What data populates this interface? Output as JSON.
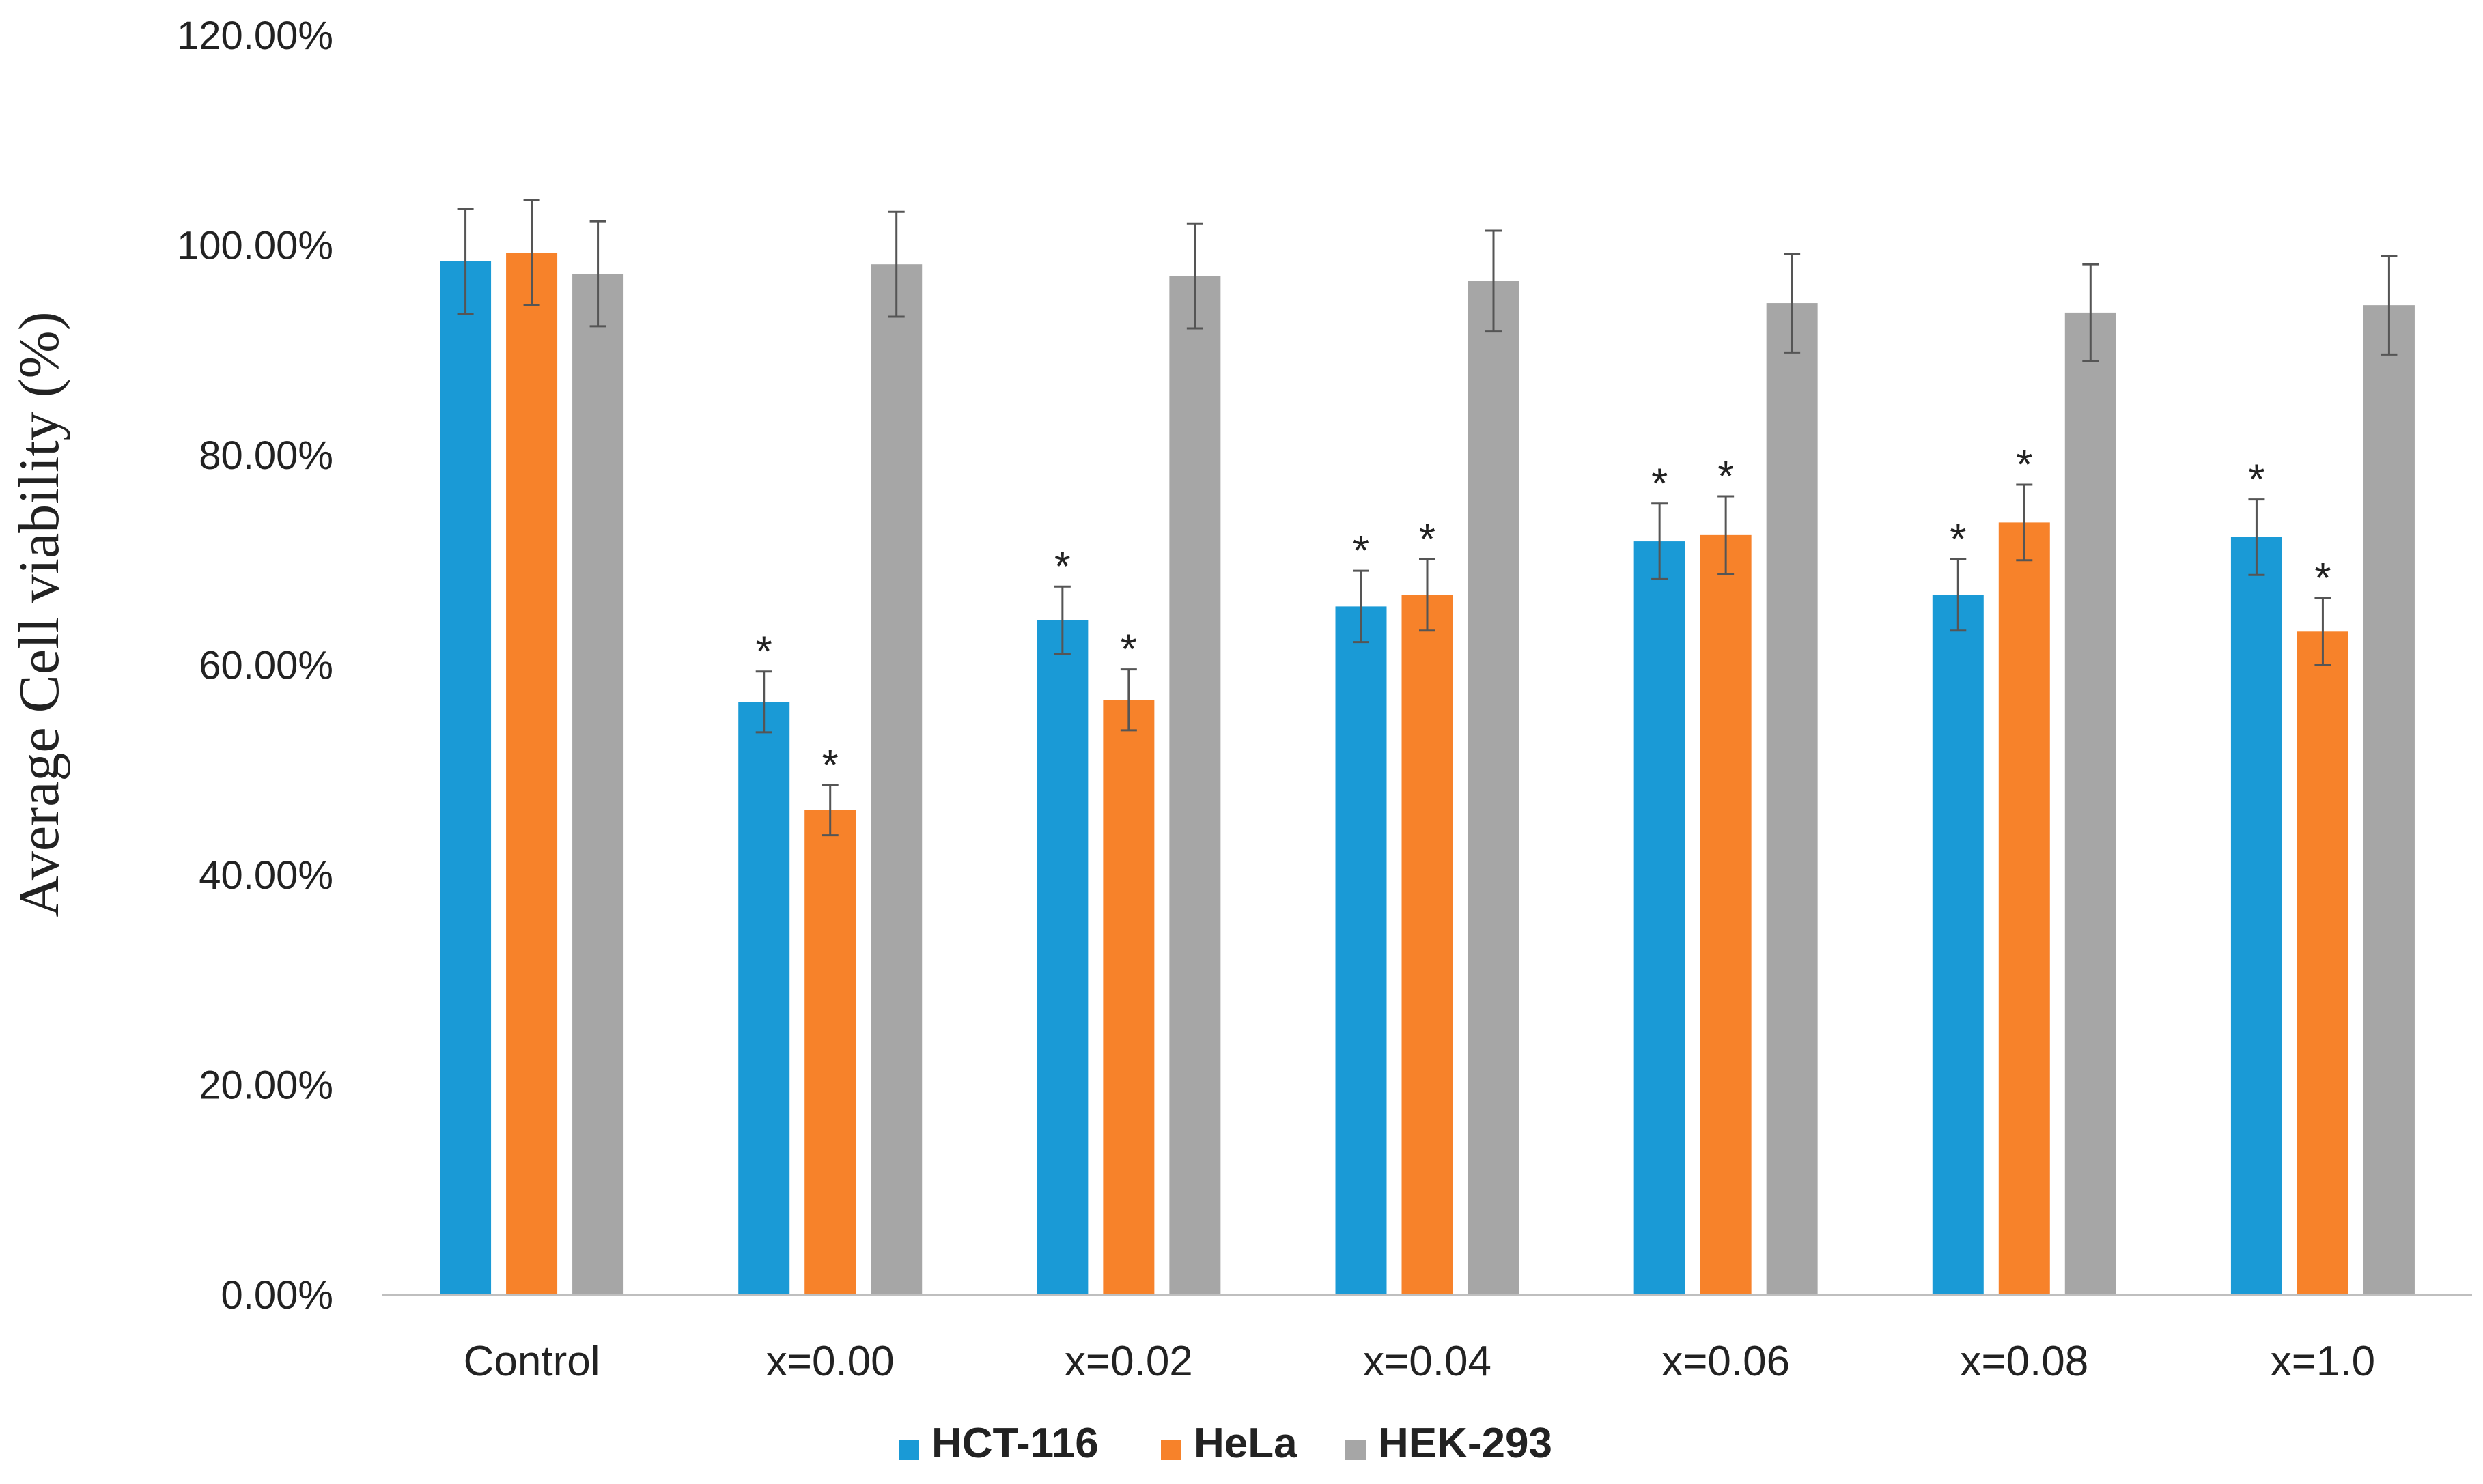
{
  "chart_data": {
    "type": "bar",
    "title": "",
    "xlabel": "",
    "ylabel": "Average  Cell viability (%)",
    "ylim": [
      0,
      120
    ],
    "yticks": [
      0,
      20,
      40,
      60,
      80,
      100,
      120
    ],
    "ytick_labels": [
      "0.00%",
      "20.00%",
      "40.00%",
      "60.00%",
      "80.00%",
      "100.00%",
      "120.00%"
    ],
    "grid": false,
    "legend_position": "bottom",
    "categories": [
      "Control",
      "x=0.00",
      "x=0.02",
      "x=0.04",
      "x=0.06",
      "x=0.08",
      "x=1.0"
    ],
    "significance_marker": "*",
    "series": [
      {
        "name": "HCT-116",
        "color": "#1a9ad6",
        "values": [
          98.5,
          56.5,
          64.3,
          65.6,
          71.8,
          66.7,
          72.2
        ],
        "errors": [
          5.0,
          2.9,
          3.2,
          3.4,
          3.6,
          3.4,
          3.6
        ],
        "significant": [
          false,
          true,
          true,
          true,
          true,
          true,
          true
        ]
      },
      {
        "name": "HeLa",
        "color": "#f7822a",
        "values": [
          99.3,
          46.2,
          56.7,
          66.7,
          72.4,
          73.6,
          63.2
        ],
        "errors": [
          5.0,
          2.4,
          2.9,
          3.4,
          3.7,
          3.6,
          3.2
        ],
        "significant": [
          false,
          true,
          true,
          true,
          true,
          true,
          true
        ]
      },
      {
        "name": "HEK-293",
        "color": "#a6a6a6",
        "values": [
          97.3,
          98.2,
          97.1,
          96.6,
          94.5,
          93.6,
          94.3
        ],
        "errors": [
          5.0,
          5.0,
          5.0,
          4.8,
          4.7,
          4.6,
          4.7
        ],
        "significant": [
          false,
          false,
          false,
          false,
          false,
          false,
          false
        ]
      }
    ]
  }
}
